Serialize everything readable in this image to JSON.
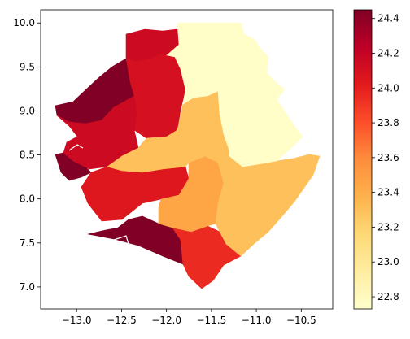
{
  "chart_data": {
    "type": "choropleth",
    "xlim": [
      -13.4,
      -10.15
    ],
    "ylim": [
      6.75,
      10.15
    ],
    "x_ticks": [
      -13.0,
      -12.5,
      -12.0,
      -11.5,
      -11.0,
      -10.5
    ],
    "x_tick_labels": [
      "−13.0",
      "−12.5",
      "−12.0",
      "−11.5",
      "−11.0",
      "−10.5"
    ],
    "y_ticks": [
      7.0,
      7.5,
      8.0,
      8.5,
      9.0,
      9.5,
      10.0
    ],
    "y_tick_labels": [
      "7.0",
      "7.5",
      "8.0",
      "8.5",
      "9.0",
      "9.5",
      "10.0"
    ],
    "colorbar": {
      "cmap": "YlOrRd",
      "range": [
        22.73,
        24.45
      ],
      "ticks": [
        22.8,
        23.0,
        23.2,
        23.4,
        23.6,
        23.8,
        24.0,
        24.2,
        24.4
      ],
      "tick_labels": [
        "22.8",
        "23.0",
        "23.2",
        "23.4",
        "23.6",
        "23.8",
        "24.0",
        "24.2",
        "24.4"
      ]
    },
    "regions": [
      {
        "id": "north-west-a",
        "value": 24.45
      },
      {
        "id": "coast-west",
        "value": 24.45
      },
      {
        "id": "north-b",
        "value": 24.15
      },
      {
        "id": "north-c",
        "value": 24.1
      },
      {
        "id": "west-central",
        "value": 24.15
      },
      {
        "id": "south-west",
        "value": 24.05
      },
      {
        "id": "south-coast",
        "value": 24.45
      },
      {
        "id": "south",
        "value": 23.95
      },
      {
        "id": "central",
        "value": 23.45
      },
      {
        "id": "central-band",
        "value": 23.3
      },
      {
        "id": "east-south",
        "value": 23.3
      },
      {
        "id": "east",
        "value": 23.3
      },
      {
        "id": "north-east",
        "value": 22.75
      },
      {
        "id": "east-north",
        "value": 22.75
      }
    ]
  }
}
